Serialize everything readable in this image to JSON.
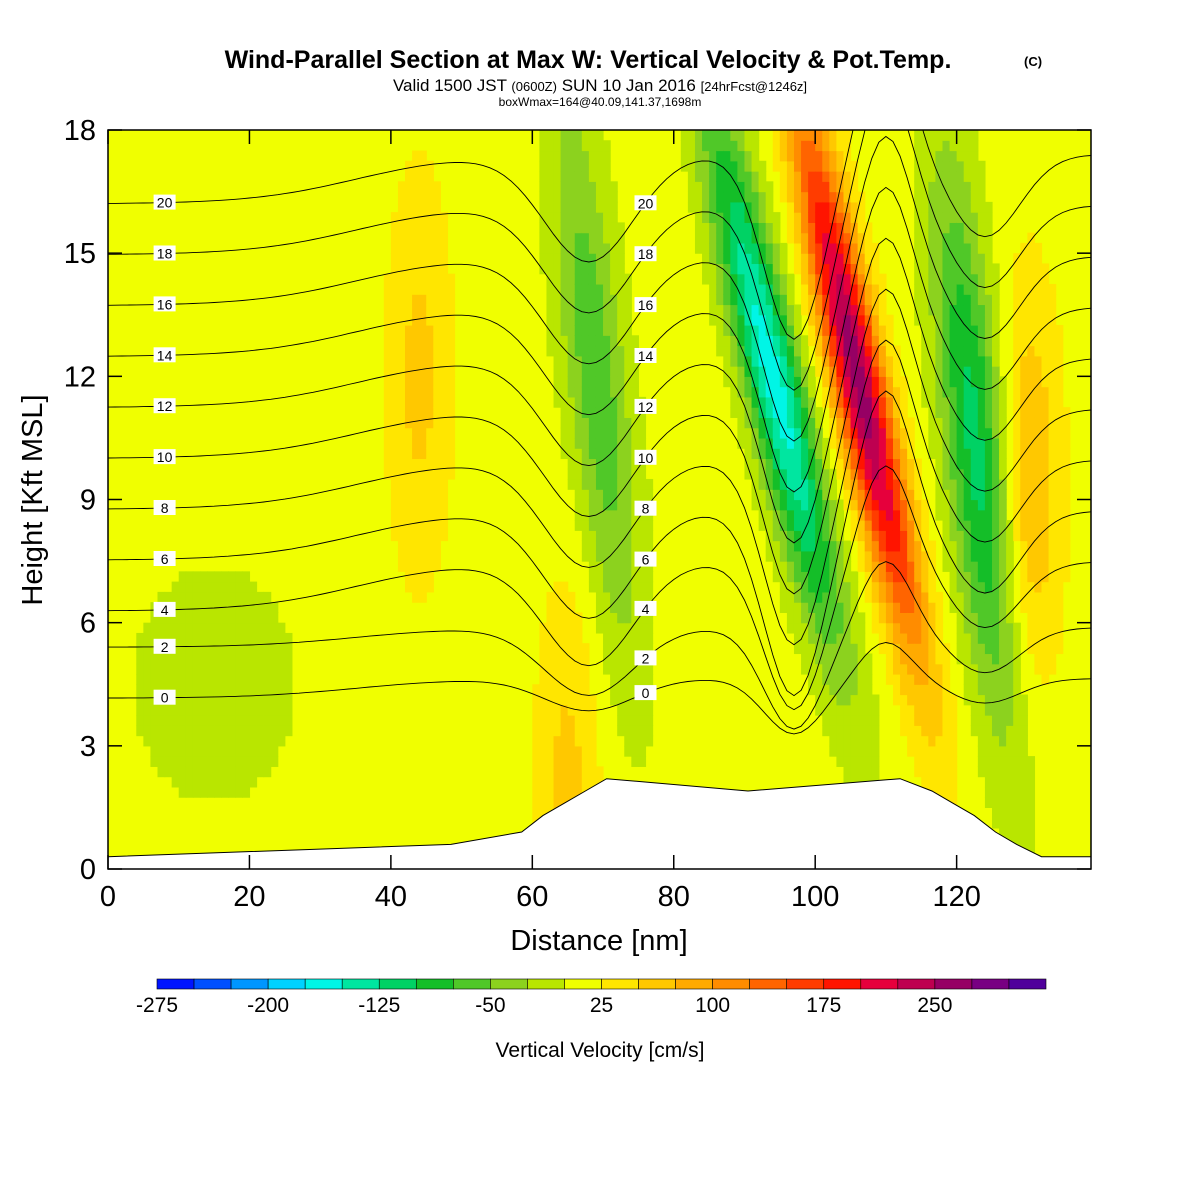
{
  "title": {
    "main": "Wind-Parallel Section at Max W: Vertical Velocity & Pot.Temp.",
    "copyright": "(C)",
    "valid_prefix": "Valid 1500 JST",
    "valid_utc": "(0600Z)",
    "valid_date": "SUN 10 Jan 2016",
    "forecast": "[24hrFcst@1246z]",
    "box_max": "boxWmax=164@40.09,141.37,1698m"
  },
  "chart_data": {
    "type": "heatmap",
    "xlabel": "Distance [nm]",
    "ylabel": "Height [Kft MSL]",
    "xlim": [
      0,
      139
    ],
    "ylim": [
      0,
      18
    ],
    "x_ticks": [
      "0",
      "20",
      "40",
      "60",
      "80",
      "100",
      "120"
    ],
    "y_ticks": [
      "0",
      "3",
      "6",
      "9",
      "12",
      "15",
      "18"
    ],
    "grid": false,
    "colorbar": {
      "title": "Vertical Velocity [cm/s]",
      "tick_labels": [
        "-275",
        "-200",
        "-125",
        "-50",
        "25",
        "100",
        "175",
        "250"
      ],
      "tick_values": [
        -275,
        -200,
        -125,
        -50,
        25,
        100,
        175,
        250
      ],
      "range": [
        -275,
        325
      ],
      "colors": [
        "#0014ff",
        "#0050ff",
        "#0096ff",
        "#00d2ff",
        "#00f5e6",
        "#00e6a0",
        "#00d264",
        "#14be28",
        "#50c828",
        "#8cd21e",
        "#b9e600",
        "#f0ff00",
        "#ffe600",
        "#ffc800",
        "#ffaa00",
        "#ff8c00",
        "#ff6400",
        "#ff3c00",
        "#ff1400",
        "#e6003c",
        "#be0050",
        "#960064",
        "#780082",
        "#50009b"
      ]
    },
    "vertical_velocity_features": [
      {
        "kind": "updraft",
        "center_x_nm": 106,
        "center_height_kft": 12,
        "peak_cm_s": 250
      },
      {
        "kind": "downdraft",
        "center_x_nm": 94,
        "center_height_kft": 12,
        "peak_cm_s": -175
      },
      {
        "kind": "downdraft",
        "center_x_nm": 123,
        "center_height_kft": 10,
        "peak_cm_s": -125
      },
      {
        "kind": "downdraft",
        "center_x_nm": 69,
        "center_height_kft": 12,
        "peak_cm_s": -80
      },
      {
        "kind": "weak_updraft",
        "center_x_nm": 130,
        "center_height_kft": 9,
        "peak_cm_s": 70
      },
      {
        "kind": "weak_updraft",
        "center_x_nm": 44,
        "center_height_kft": 12,
        "peak_cm_s": 45
      },
      {
        "kind": "weak_updraft",
        "center_x_nm": 65,
        "center_height_kft": 2,
        "peak_cm_s": 45
      },
      {
        "kind": "weak_downdraft",
        "center_x_nm": 15,
        "center_height_kft": 4.5,
        "peak_cm_s": -30
      }
    ],
    "potential_temperature_contours": {
      "labels": [
        "0",
        "2",
        "4",
        "6",
        "8",
        "10",
        "12",
        "14",
        "16",
        "18",
        "20"
      ],
      "levels": [
        0,
        2,
        4,
        6,
        8,
        10,
        12,
        14,
        16,
        18,
        20
      ]
    },
    "terrain_profile": {
      "x_nm": [
        0,
        48.5,
        58.5,
        61.5,
        64.5,
        67.5,
        70.5,
        90.5,
        112,
        116.5,
        119.5,
        122.5,
        125.5,
        128.5,
        132,
        139
      ],
      "height_kft": [
        0.3,
        0.6,
        0.9,
        1.3,
        1.6,
        1.9,
        2.2,
        1.9,
        2.2,
        1.9,
        1.6,
        1.3,
        0.9,
        0.6,
        0.3,
        0.3
      ]
    }
  }
}
